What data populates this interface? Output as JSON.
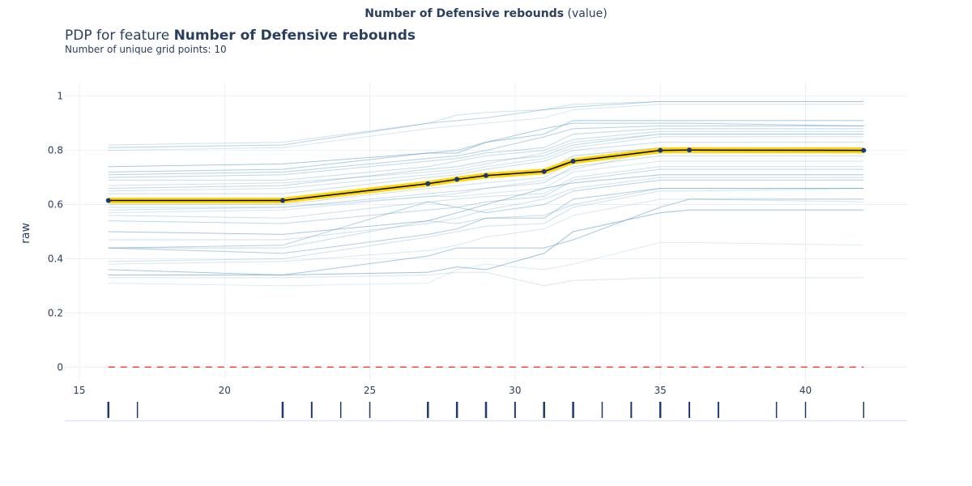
{
  "header": {
    "top_feature": "Number of Defensive rebounds",
    "top_suffix": "(value)",
    "title_prefix": "PDP for feature",
    "title_feature": "Number of Defensive rebounds",
    "subtitle": "Number of unique grid points: 10"
  },
  "colors": {
    "pdp_fill": "#ffd700",
    "pdp_line": "#000000",
    "pdp_marker": "#1a3a6e",
    "ice_line": "#5b9bc8",
    "zero_line": "#e74c3c",
    "rug": "#1f3a6b",
    "grid": "#ebf0f8"
  },
  "chart_data": {
    "type": "line",
    "title": "",
    "xlabel": "",
    "ylabel": "raw",
    "xlim": [
      14.5,
      43.5
    ],
    "ylim": [
      -0.05,
      1.05
    ],
    "x_ticks": [
      15,
      20,
      25,
      30,
      35,
      40
    ],
    "y_ticks": [
      0,
      0.2,
      0.4,
      0.6,
      0.8,
      1
    ],
    "y_tick_labels": [
      "0",
      "0.2",
      "0.4",
      "0.6",
      "0.8",
      "1"
    ],
    "grid": true,
    "legend": "none",
    "pdp": {
      "x": [
        16,
        22,
        27,
        28,
        29,
        31,
        32,
        35,
        36,
        42
      ],
      "y": [
        0.615,
        0.615,
        0.677,
        0.693,
        0.707,
        0.722,
        0.76,
        0.8,
        0.801,
        0.8
      ]
    },
    "ice_x": [
      16,
      22,
      27,
      28,
      29,
      31,
      32,
      35,
      36,
      42
    ],
    "ice_lines": [
      [
        0.82,
        0.83,
        0.9,
        0.93,
        0.94,
        0.95,
        0.97,
        0.98,
        0.98,
        0.98
      ],
      [
        0.81,
        0.82,
        0.9,
        0.91,
        0.92,
        0.95,
        0.96,
        0.98,
        0.98,
        0.98
      ],
      [
        0.8,
        0.81,
        0.88,
        0.89,
        0.9,
        0.92,
        0.95,
        0.97,
        0.97,
        0.97
      ],
      [
        0.74,
        0.75,
        0.79,
        0.79,
        0.83,
        0.86,
        0.91,
        0.91,
        0.91,
        0.91
      ],
      [
        0.72,
        0.73,
        0.79,
        0.8,
        0.83,
        0.88,
        0.9,
        0.9,
        0.9,
        0.89
      ],
      [
        0.71,
        0.72,
        0.77,
        0.78,
        0.8,
        0.85,
        0.88,
        0.89,
        0.89,
        0.89
      ],
      [
        0.7,
        0.71,
        0.76,
        0.77,
        0.79,
        0.81,
        0.86,
        0.88,
        0.88,
        0.88
      ],
      [
        0.69,
        0.69,
        0.74,
        0.76,
        0.78,
        0.8,
        0.84,
        0.87,
        0.87,
        0.87
      ],
      [
        0.66,
        0.67,
        0.73,
        0.74,
        0.76,
        0.78,
        0.82,
        0.86,
        0.86,
        0.86
      ],
      [
        0.65,
        0.66,
        0.71,
        0.72,
        0.74,
        0.77,
        0.81,
        0.85,
        0.85,
        0.85
      ],
      [
        0.64,
        0.64,
        0.7,
        0.71,
        0.73,
        0.76,
        0.8,
        0.83,
        0.83,
        0.83
      ],
      [
        0.62,
        0.62,
        0.68,
        0.69,
        0.71,
        0.72,
        0.78,
        0.81,
        0.81,
        0.81
      ],
      [
        0.6,
        0.6,
        0.66,
        0.67,
        0.68,
        0.7,
        0.76,
        0.79,
        0.79,
        0.79
      ],
      [
        0.59,
        0.59,
        0.64,
        0.65,
        0.66,
        0.68,
        0.74,
        0.78,
        0.78,
        0.78
      ],
      [
        0.57,
        0.58,
        0.63,
        0.63,
        0.64,
        0.66,
        0.72,
        0.76,
        0.76,
        0.76
      ],
      [
        0.56,
        0.55,
        0.61,
        0.62,
        0.63,
        0.64,
        0.7,
        0.74,
        0.74,
        0.74
      ],
      [
        0.54,
        0.53,
        0.58,
        0.59,
        0.61,
        0.63,
        0.69,
        0.73,
        0.73,
        0.73
      ],
      [
        0.5,
        0.49,
        0.54,
        0.57,
        0.6,
        0.66,
        0.68,
        0.71,
        0.71,
        0.71
      ],
      [
        0.47,
        0.47,
        0.53,
        0.55,
        0.58,
        0.62,
        0.66,
        0.7,
        0.7,
        0.7
      ],
      [
        0.44,
        0.45,
        0.61,
        0.59,
        0.57,
        0.6,
        0.65,
        0.69,
        0.69,
        0.69
      ],
      [
        0.44,
        0.44,
        0.54,
        0.53,
        0.55,
        0.56,
        0.6,
        0.66,
        0.66,
        0.66
      ],
      [
        0.44,
        0.42,
        0.49,
        0.51,
        0.55,
        0.55,
        0.62,
        0.66,
        0.66,
        0.66
      ],
      [
        0.39,
        0.4,
        0.48,
        0.5,
        0.52,
        0.53,
        0.59,
        0.65,
        0.65,
        0.66
      ],
      [
        0.36,
        0.34,
        0.41,
        0.44,
        0.44,
        0.44,
        0.47,
        0.59,
        0.62,
        0.62
      ],
      [
        0.34,
        0.34,
        0.35,
        0.37,
        0.36,
        0.42,
        0.5,
        0.57,
        0.58,
        0.58
      ],
      [
        0.33,
        0.33,
        0.34,
        0.35,
        0.35,
        0.3,
        0.32,
        0.33,
        0.33,
        0.33
      ],
      [
        0.31,
        0.3,
        0.31,
        0.36,
        0.38,
        0.36,
        0.38,
        0.46,
        0.46,
        0.45
      ],
      [
        0.38,
        0.39,
        0.43,
        0.45,
        0.48,
        0.51,
        0.56,
        0.62,
        0.62,
        0.61
      ],
      [
        0.58,
        0.59,
        0.63,
        0.64,
        0.66,
        0.69,
        0.73,
        0.8,
        0.8,
        0.8
      ],
      [
        0.67,
        0.68,
        0.72,
        0.73,
        0.75,
        0.79,
        0.83,
        0.86,
        0.86,
        0.86
      ]
    ],
    "ice_opacity": [
      0.3,
      0.45,
      0.25,
      0.55,
      0.5,
      0.45,
      0.4,
      0.35,
      0.4,
      0.3,
      0.35,
      0.45,
      0.3,
      0.35,
      0.25,
      0.3,
      0.4,
      0.55,
      0.3,
      0.45,
      0.35,
      0.5,
      0.3,
      0.55,
      0.6,
      0.25,
      0.2,
      0.25,
      0.3,
      0.3
    ],
    "rug": [
      {
        "x": 16,
        "w": 2.5
      },
      {
        "x": 17,
        "w": 1.5
      },
      {
        "x": 22,
        "w": 2.5
      },
      {
        "x": 23,
        "w": 2.0
      },
      {
        "x": 24,
        "w": 1.5
      },
      {
        "x": 25,
        "w": 1.5
      },
      {
        "x": 27,
        "w": 2.5
      },
      {
        "x": 28,
        "w": 2.5
      },
      {
        "x": 29,
        "w": 2.5
      },
      {
        "x": 30,
        "w": 2.0
      },
      {
        "x": 31,
        "w": 2.5
      },
      {
        "x": 32,
        "w": 2.5
      },
      {
        "x": 33,
        "w": 1.5
      },
      {
        "x": 34,
        "w": 2.0
      },
      {
        "x": 35,
        "w": 2.5
      },
      {
        "x": 36,
        "w": 2.0
      },
      {
        "x": 37,
        "w": 2.0
      },
      {
        "x": 39,
        "w": 1.5
      },
      {
        "x": 40,
        "w": 1.5
      },
      {
        "x": 42,
        "w": 1.5
      }
    ]
  }
}
